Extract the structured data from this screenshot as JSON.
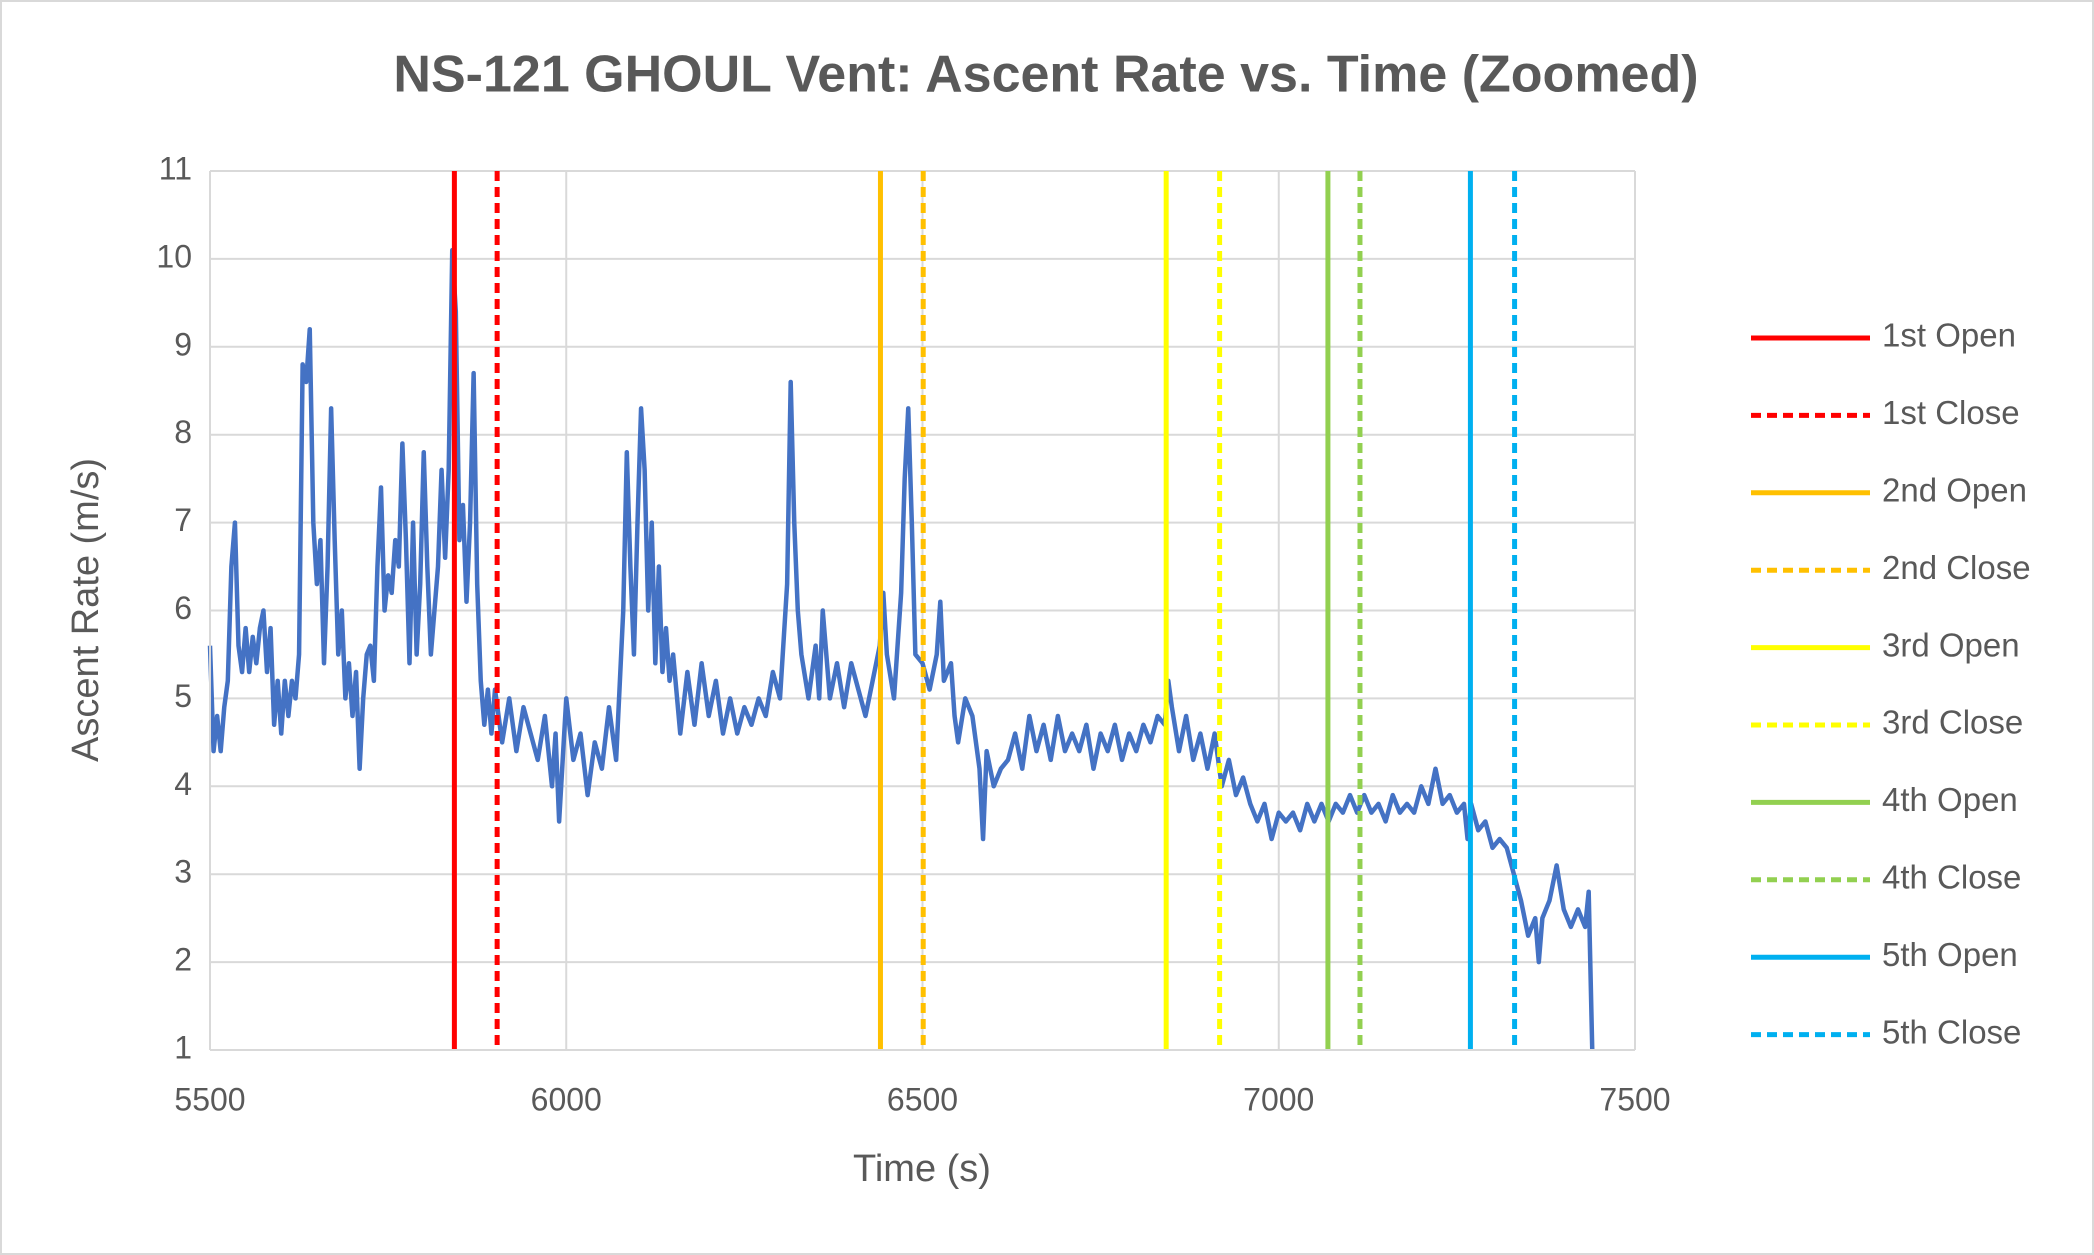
{
  "chart_data": {
    "type": "line",
    "title": "NS-121 GHOUL Vent: Ascent Rate vs. Time (Zoomed)",
    "x_label": "Time (s)",
    "y_label": "Ascent Rate (m/s)",
    "xlim": [
      5500,
      7500
    ],
    "xticks": [
      5500,
      6000,
      6500,
      7000,
      7500
    ],
    "ylim": [
      1,
      11
    ],
    "yticks": [
      1,
      2,
      3,
      4,
      5,
      6,
      7,
      8,
      9,
      10,
      11
    ],
    "grid": true,
    "legend": "right",
    "x": [
      5500,
      5505,
      5510,
      5515,
      5520,
      5525,
      5530,
      5535,
      5540,
      5545,
      5550,
      5555,
      5560,
      5565,
      5570,
      5575,
      5580,
      5585,
      5590,
      5595,
      5600,
      5605,
      5610,
      5615,
      5620,
      5625,
      5630,
      5635,
      5640,
      5645,
      5650,
      5655,
      5660,
      5665,
      5670,
      5675,
      5680,
      5685,
      5690,
      5695,
      5700,
      5705,
      5710,
      5715,
      5720,
      5725,
      5730,
      5735,
      5740,
      5745,
      5750,
      5755,
      5760,
      5765,
      5770,
      5775,
      5780,
      5785,
      5790,
      5795,
      5800,
      5805,
      5810,
      5815,
      5820,
      5825,
      5830,
      5835,
      5840,
      5845,
      5850,
      5855,
      5860,
      5865,
      5870,
      5875,
      5880,
      5885,
      5890,
      5895,
      5900,
      5910,
      5920,
      5930,
      5940,
      5950,
      5960,
      5970,
      5980,
      5985,
      5990,
      6000,
      6010,
      6020,
      6030,
      6040,
      6050,
      6060,
      6070,
      6080,
      6085,
      6090,
      6095,
      6100,
      6105,
      6110,
      6115,
      6120,
      6125,
      6130,
      6135,
      6140,
      6145,
      6150,
      6160,
      6170,
      6180,
      6190,
      6200,
      6210,
      6220,
      6230,
      6240,
      6250,
      6260,
      6270,
      6280,
      6290,
      6300,
      6310,
      6315,
      6320,
      6325,
      6330,
      6340,
      6350,
      6355,
      6360,
      6370,
      6380,
      6390,
      6400,
      6410,
      6420,
      6430,
      6440,
      6445,
      6450,
      6460,
      6470,
      6475,
      6480,
      6485,
      6490,
      6500,
      6510,
      6520,
      6525,
      6530,
      6540,
      6545,
      6550,
      6560,
      6570,
      6580,
      6585,
      6590,
      6600,
      6610,
      6620,
      6630,
      6640,
      6650,
      6660,
      6670,
      6680,
      6690,
      6700,
      6710,
      6720,
      6730,
      6740,
      6750,
      6760,
      6770,
      6780,
      6790,
      6800,
      6810,
      6820,
      6830,
      6840,
      6845,
      6850,
      6860,
      6870,
      6880,
      6890,
      6900,
      6910,
      6920,
      6930,
      6940,
      6950,
      6960,
      6970,
      6980,
      6990,
      7000,
      7010,
      7020,
      7030,
      7040,
      7050,
      7060,
      7070,
      7080,
      7090,
      7100,
      7110,
      7120,
      7130,
      7140,
      7150,
      7160,
      7170,
      7180,
      7190,
      7200,
      7210,
      7220,
      7230,
      7240,
      7250,
      7260,
      7265,
      7270,
      7280,
      7290,
      7300,
      7310,
      7320,
      7330,
      7340,
      7350,
      7360,
      7365,
      7370,
      7380,
      7390,
      7400,
      7410,
      7420,
      7430,
      7435,
      7440
    ],
    "series": [
      {
        "color": "#4472c4",
        "values": [
          5.6,
          4.4,
          4.8,
          4.4,
          4.9,
          5.2,
          6.5,
          7.0,
          5.6,
          5.3,
          5.8,
          5.3,
          5.7,
          5.4,
          5.8,
          6.0,
          5.3,
          5.8,
          4.7,
          5.2,
          4.6,
          5.2,
          4.8,
          5.2,
          5.0,
          5.5,
          8.8,
          8.6,
          9.2,
          7.0,
          6.3,
          6.8,
          5.4,
          6.5,
          8.3,
          6.8,
          5.5,
          6.0,
          5.0,
          5.4,
          4.8,
          5.3,
          4.2,
          5.0,
          5.5,
          5.6,
          5.2,
          6.5,
          7.4,
          6.0,
          6.4,
          6.2,
          6.8,
          6.5,
          7.9,
          6.8,
          5.4,
          7.0,
          5.5,
          6.3,
          7.8,
          6.5,
          5.5,
          6.0,
          6.5,
          7.6,
          6.6,
          7.6,
          10.1,
          9.4,
          6.8,
          7.2,
          6.1,
          7.0,
          8.7,
          6.3,
          5.2,
          4.7,
          5.1,
          4.6,
          5.1,
          4.5,
          5.0,
          4.4,
          4.9,
          4.6,
          4.3,
          4.8,
          4.0,
          4.6,
          3.6,
          5.0,
          4.3,
          4.6,
          3.9,
          4.5,
          4.2,
          4.9,
          4.3,
          6.0,
          7.8,
          6.5,
          5.5,
          7.0,
          8.3,
          7.6,
          6.0,
          7.0,
          5.4,
          6.5,
          5.3,
          5.8,
          5.2,
          5.5,
          4.6,
          5.3,
          4.7,
          5.4,
          4.8,
          5.2,
          4.6,
          5.0,
          4.6,
          4.9,
          4.7,
          5.0,
          4.8,
          5.3,
          5.0,
          6.3,
          8.6,
          7.0,
          6.0,
          5.5,
          5.0,
          5.6,
          5.0,
          6.0,
          5.0,
          5.4,
          4.9,
          5.4,
          5.1,
          4.8,
          5.2,
          5.6,
          6.2,
          5.5,
          5.0,
          6.2,
          7.5,
          8.3,
          7.0,
          5.5,
          5.4,
          5.1,
          5.5,
          6.1,
          5.2,
          5.4,
          4.8,
          4.5,
          5.0,
          4.8,
          4.2,
          3.4,
          4.4,
          4.0,
          4.2,
          4.3,
          4.6,
          4.2,
          4.8,
          4.4,
          4.7,
          4.3,
          4.8,
          4.4,
          4.6,
          4.4,
          4.7,
          4.2,
          4.6,
          4.4,
          4.7,
          4.3,
          4.6,
          4.4,
          4.7,
          4.5,
          4.8,
          4.7,
          5.2,
          4.9,
          4.4,
          4.8,
          4.3,
          4.6,
          4.2,
          4.6,
          4.0,
          4.3,
          3.9,
          4.1,
          3.8,
          3.6,
          3.8,
          3.4,
          3.7,
          3.6,
          3.7,
          3.5,
          3.8,
          3.6,
          3.8,
          3.6,
          3.8,
          3.7,
          3.9,
          3.7,
          3.9,
          3.7,
          3.8,
          3.6,
          3.9,
          3.7,
          3.8,
          3.7,
          4.0,
          3.8,
          4.2,
          3.8,
          3.9,
          3.7,
          3.8,
          3.4,
          3.8,
          3.5,
          3.6,
          3.3,
          3.4,
          3.3,
          3.0,
          2.7,
          2.3,
          2.5,
          2.0,
          2.5,
          2.7,
          3.1,
          2.6,
          2.4,
          2.6,
          2.4,
          2.8,
          1.0
        ]
      }
    ],
    "vlines": [
      {
        "name": "1st Open",
        "color": "#ff0000",
        "style": "solid",
        "x": 5843
      },
      {
        "name": "1st Close",
        "color": "#ff0000",
        "style": "dashed",
        "x": 5903
      },
      {
        "name": "2nd Open",
        "color": "#ffc000",
        "style": "solid",
        "x": 6441
      },
      {
        "name": "2nd Close",
        "color": "#ffc000",
        "style": "dashed",
        "x": 6501
      },
      {
        "name": "3rd Open",
        "color": "#ffff00",
        "style": "solid",
        "x": 6842
      },
      {
        "name": "3rd Close",
        "color": "#ffff00",
        "style": "dashed",
        "x": 6917
      },
      {
        "name": "4th Open",
        "color": "#92d050",
        "style": "solid",
        "x": 7069
      },
      {
        "name": "4th Close",
        "color": "#92d050",
        "style": "dashed",
        "x": 7114
      },
      {
        "name": "5th Open",
        "color": "#00b0f0",
        "style": "solid",
        "x": 7269
      },
      {
        "name": "5th Close",
        "color": "#00b0f0",
        "style": "dashed",
        "x": 7331
      }
    ]
  }
}
